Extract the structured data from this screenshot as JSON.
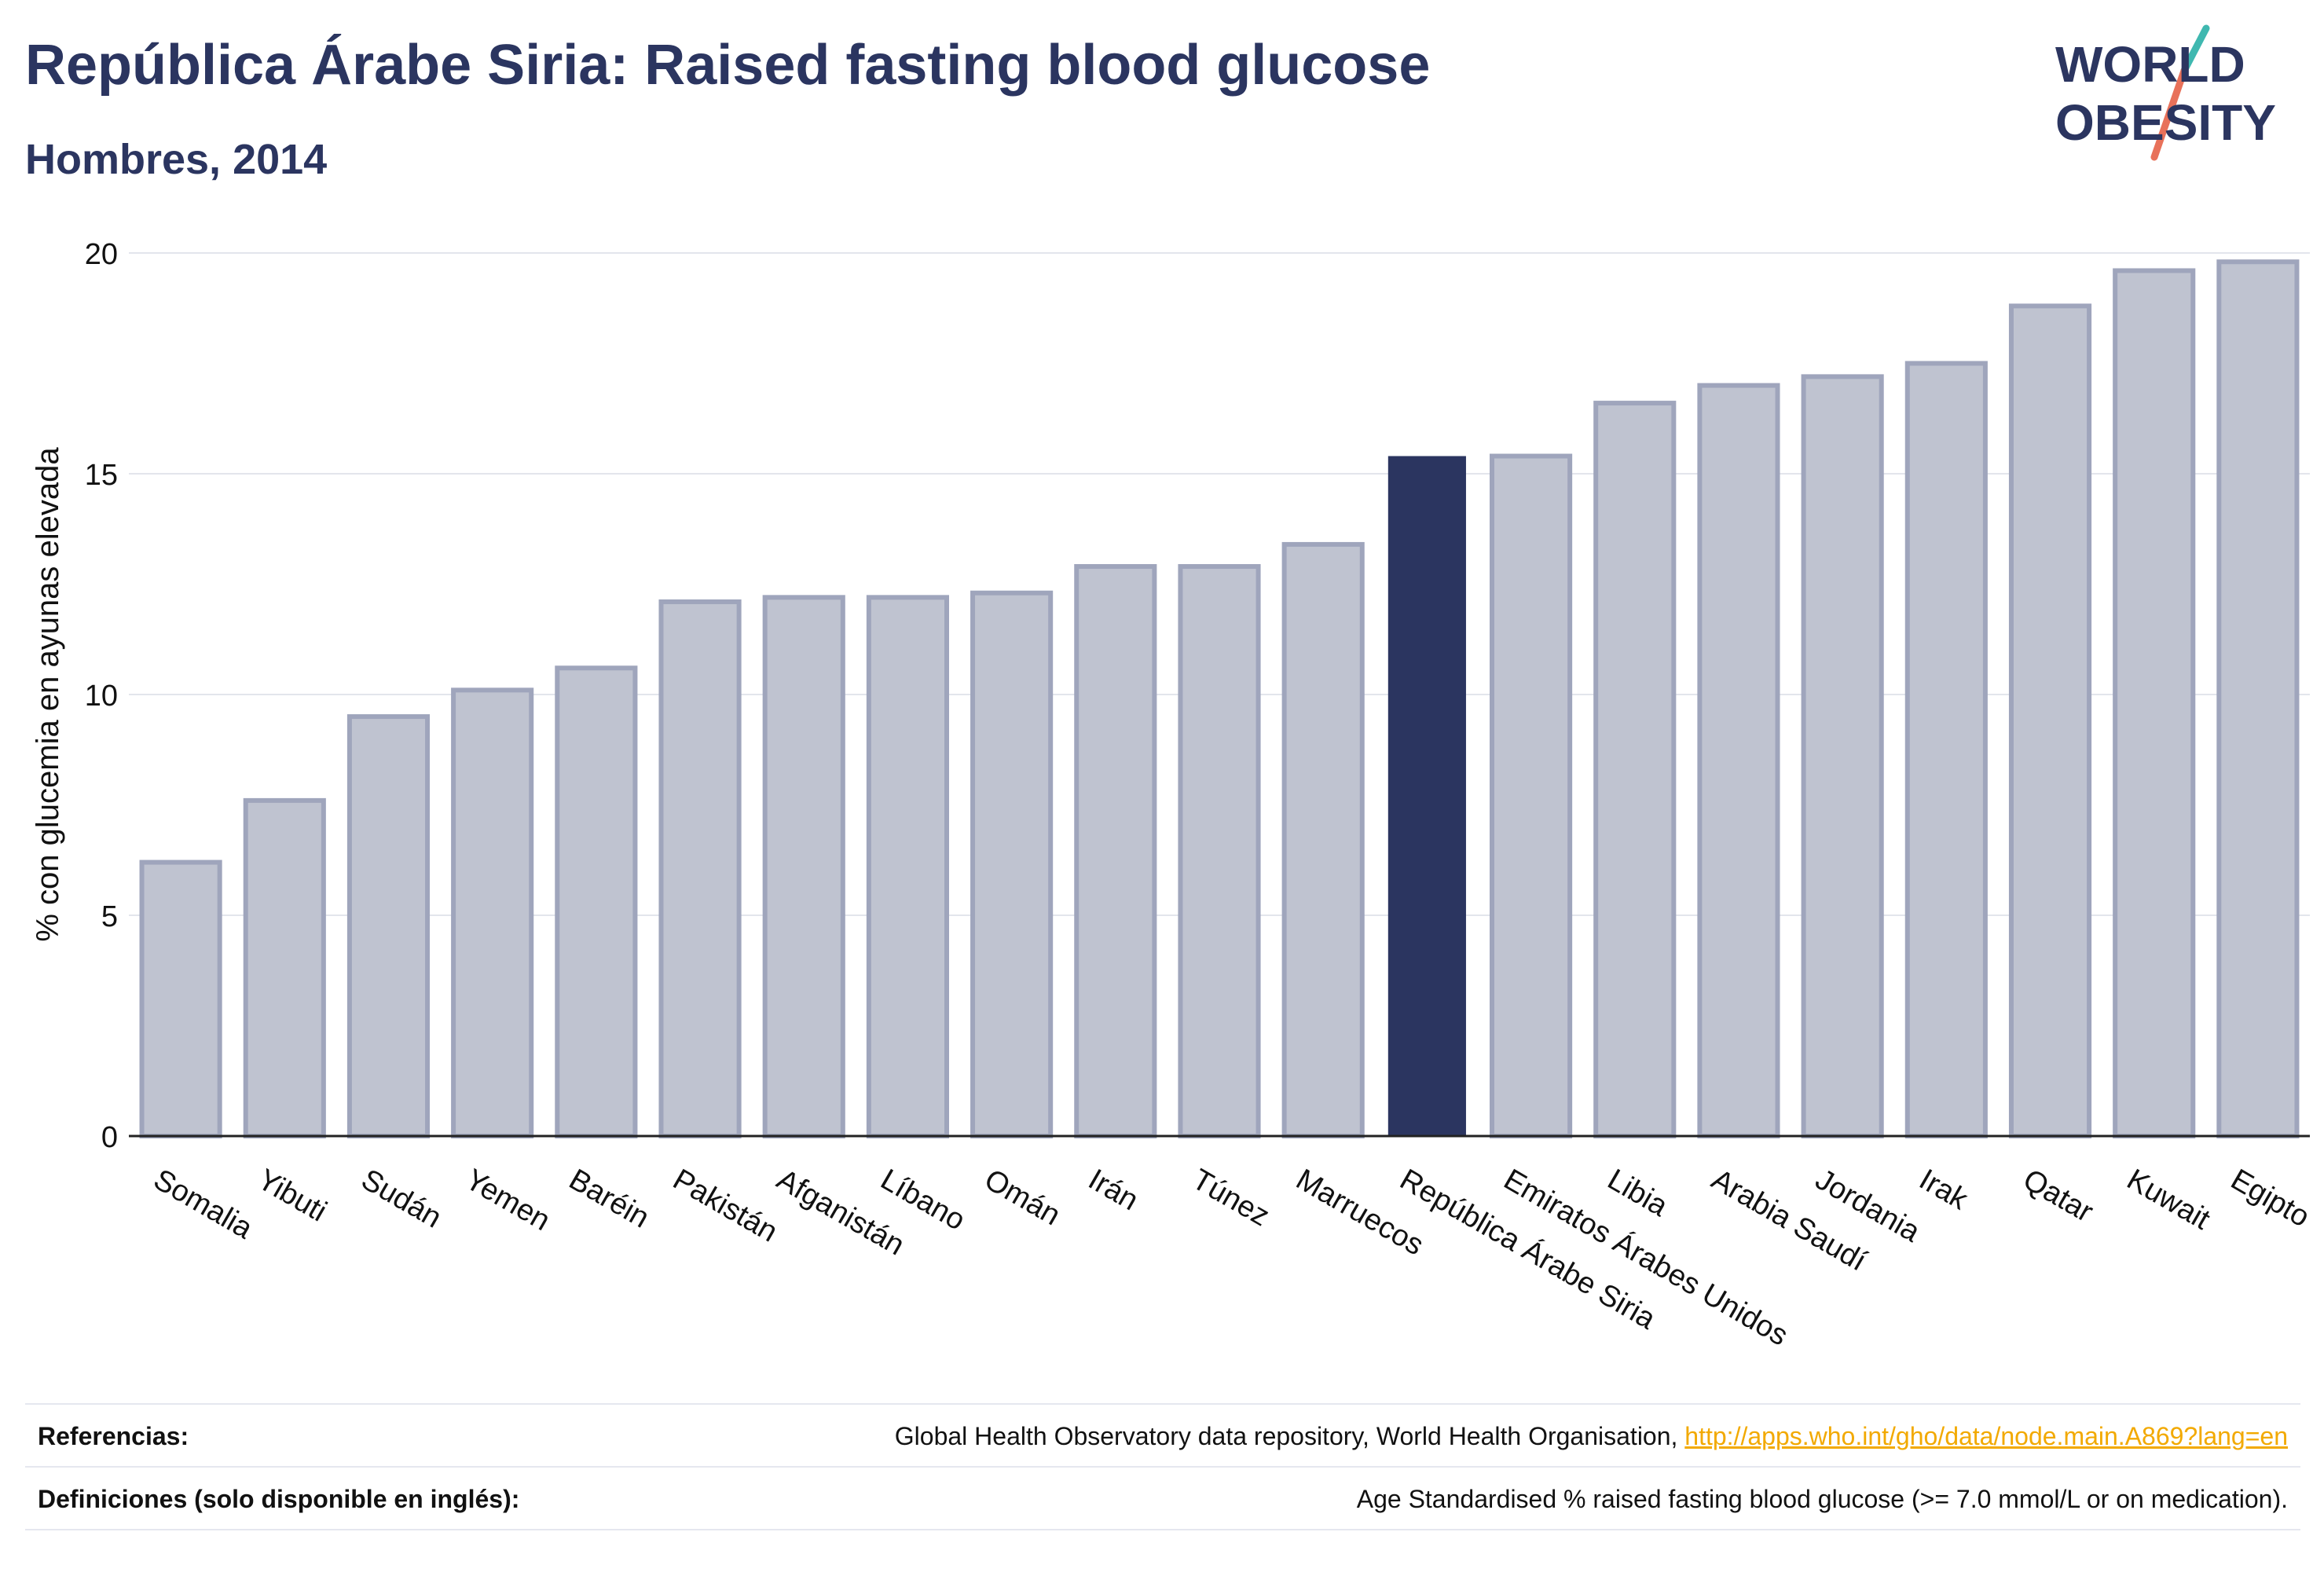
{
  "header": {
    "title": "República Árabe Siria: Raised fasting blood glucose",
    "subtitle": "Hombres, 2014"
  },
  "logo": {
    "line1": "WORLD",
    "line2": "OBESITY",
    "text_color": "#2b3560",
    "slash_top_color": "#3fb8b0",
    "slash_bottom_color": "#e8715a"
  },
  "chart_data": {
    "type": "bar",
    "ylabel": "% con glucemia en ayunas elevada",
    "xlabel": "",
    "ylim": [
      0,
      20
    ],
    "yticks": [
      0,
      5,
      10,
      15,
      20
    ],
    "grid": true,
    "highlight": "República Árabe Siria",
    "colors": {
      "bar_fill": "#bfc3d0",
      "bar_stroke": "#9fa5bc",
      "highlight_fill": "#2b3560",
      "grid": "#e3e5ec",
      "axis": "#222222"
    },
    "categories": [
      "Somalia",
      "Yibuti",
      "Sudán",
      "Yemen",
      "Baréin",
      "Pakistán",
      "Afganistán",
      "Líbano",
      "Omán",
      "Irán",
      "Túnez",
      "Marruecos",
      "República Árabe Siria",
      "Emiratos Árabes Unidos",
      "Libia",
      "Arabia Saudí",
      "Jordania",
      "Irak",
      "Qatar",
      "Kuwait",
      "Egipto"
    ],
    "values": [
      6.2,
      7.6,
      9.5,
      10.1,
      10.6,
      12.1,
      12.2,
      12.2,
      12.3,
      12.9,
      12.9,
      13.4,
      15.4,
      15.4,
      16.6,
      17.0,
      17.2,
      17.5,
      18.8,
      19.6,
      19.8
    ]
  },
  "footer": {
    "references_label": "Referencias:",
    "references_text": "Global Health Observatory data repository, World Health Organisation, ",
    "references_link": "http://apps.who.int/gho/data/node.main.A869?lang=en",
    "definitions_label": "Definiciones (solo disponible en inglés):",
    "definitions_text": "Age Standardised % raised fasting blood glucose (>= 7.0 mmol/L or on medication)."
  }
}
